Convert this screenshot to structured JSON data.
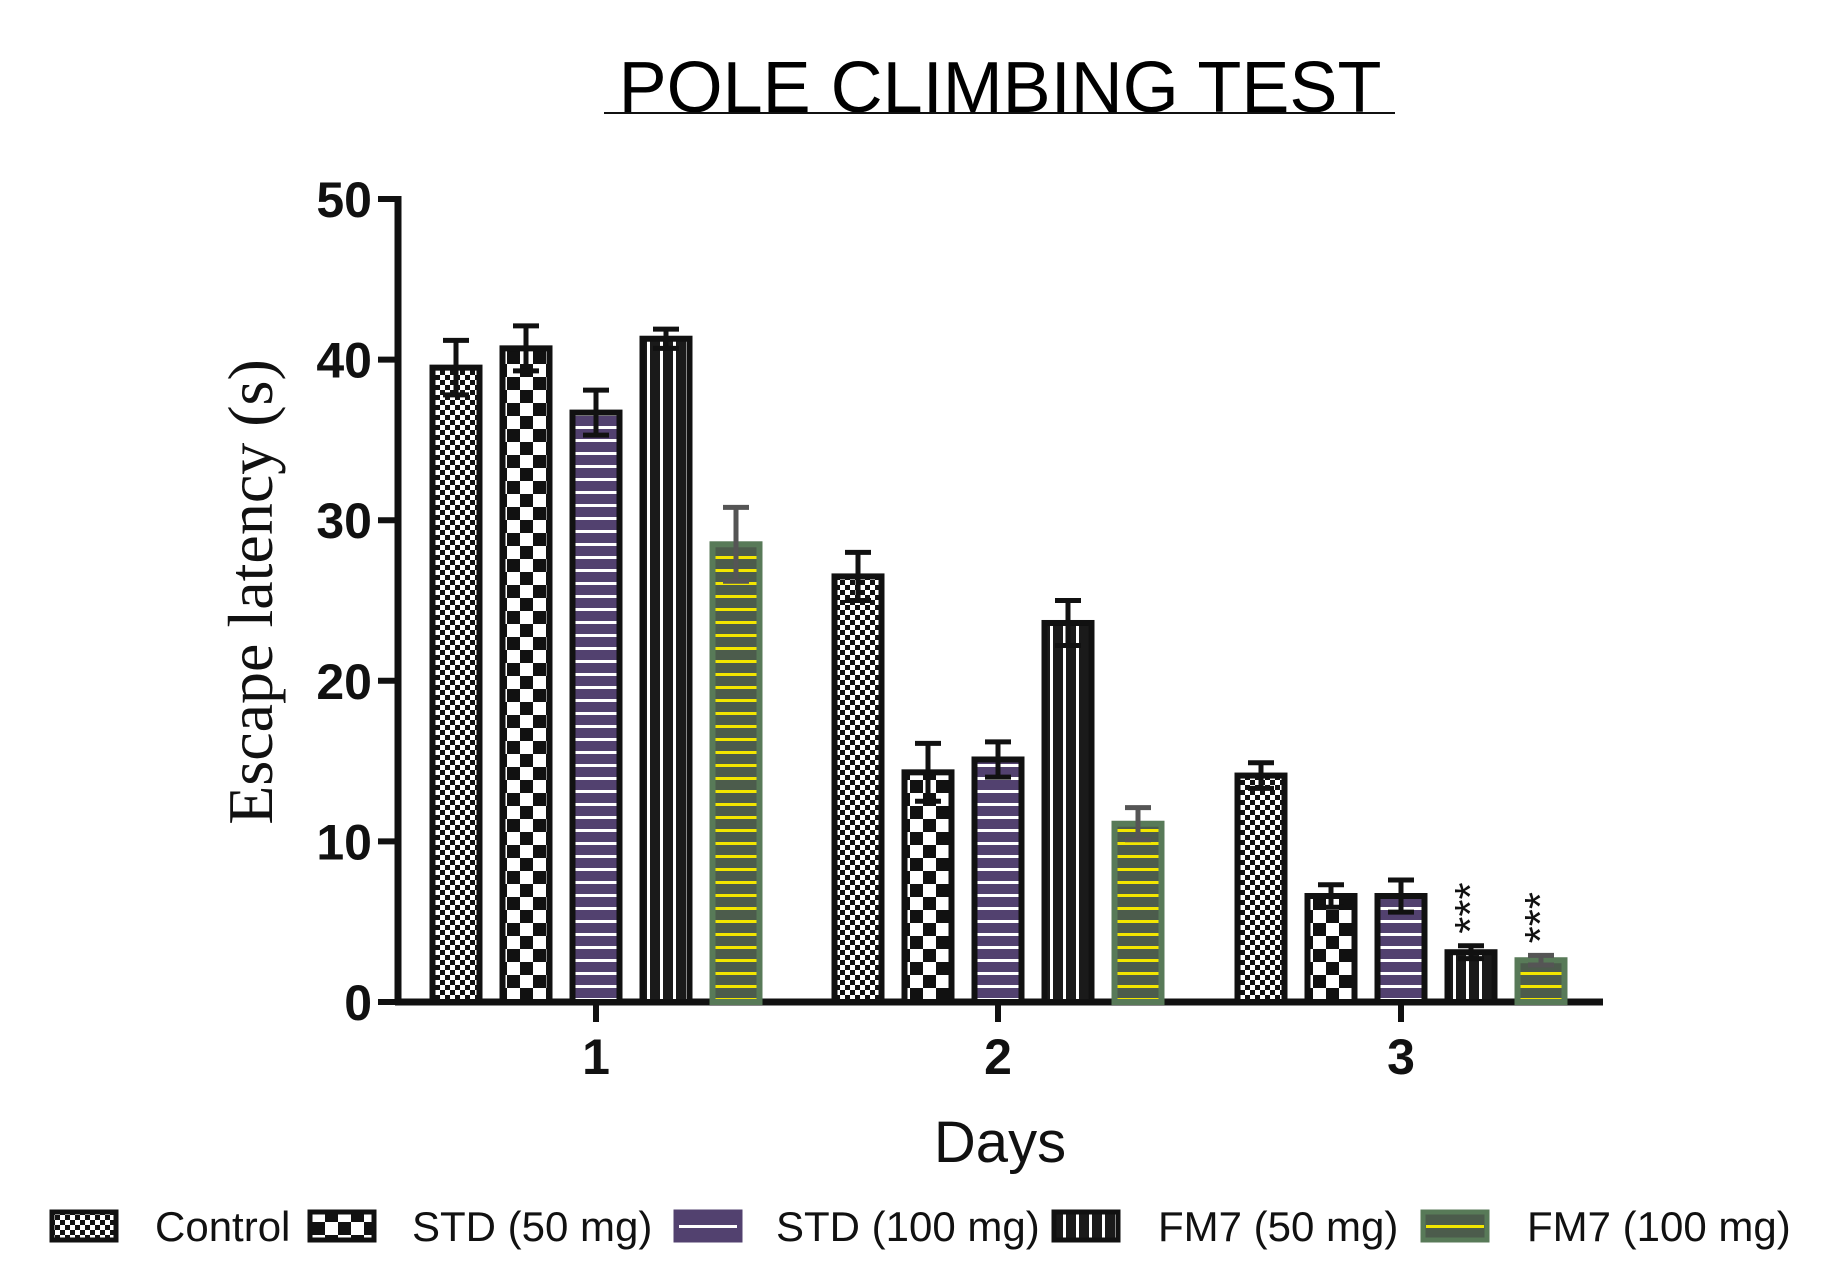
{
  "chart_data": {
    "type": "bar",
    "title": "POLE CLIMBING TEST",
    "xlabel": "Days",
    "ylabel": "Escape latency (s)",
    "ylim": [
      0,
      50
    ],
    "yticks": [
      0,
      10,
      20,
      30,
      40,
      50
    ],
    "categories": [
      "1",
      "2",
      "3"
    ],
    "grid": false,
    "legend_placement": "bottom",
    "series": [
      {
        "name": "Control",
        "pattern": "fine-checker",
        "color": "#111111",
        "values": [
          39.5,
          26.5,
          14.1
        ],
        "errors": [
          1.7,
          1.5,
          0.8
        ]
      },
      {
        "name": "STD (50 mg)",
        "pattern": "coarse-checker",
        "color": "#111111",
        "values": [
          40.7,
          14.3,
          6.6
        ],
        "errors": [
          1.4,
          1.8,
          0.7
        ]
      },
      {
        "name": "STD (100 mg)",
        "pattern": "horizontal-lines",
        "color": "#52416f",
        "values": [
          36.7,
          15.1,
          6.6
        ],
        "errors": [
          1.4,
          1.1,
          1.0
        ]
      },
      {
        "name": "FM7 (50 mg)",
        "pattern": "vertical-lines",
        "color": "#1a1a1a",
        "values": [
          41.3,
          23.6,
          3.1
        ],
        "errors": [
          0.6,
          1.4,
          0.4
        ]
      },
      {
        "name": "FM7 (100 mg)",
        "pattern": "yellow-horizontal-lines",
        "color": "#4f5f4f",
        "values": [
          28.5,
          11.1,
          2.6
        ],
        "errors": [
          2.3,
          1.0,
          0.3
        ]
      }
    ],
    "annotations": [
      {
        "category": "3",
        "series": "FM7 (50 mg)",
        "text": "***"
      },
      {
        "category": "3",
        "series": "FM7 (100 mg)",
        "text": "***"
      }
    ]
  }
}
